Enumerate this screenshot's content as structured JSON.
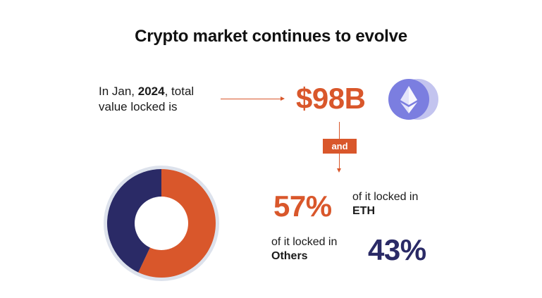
{
  "title": "Crypto market continues to evolve",
  "intro": {
    "prefix": "In Jan, ",
    "year": "2024",
    "suffix": ", total",
    "line2": "value locked is"
  },
  "total_value": "$98B",
  "connector_label": "and",
  "eth_share": {
    "percent_label": "57%",
    "desc_line1": "of it locked in",
    "desc_line2": "ETH"
  },
  "others_share": {
    "percent_label": "43%",
    "desc_line1": "of it locked in",
    "desc_line2": "Others"
  },
  "colors": {
    "accent_orange": "#d9572b",
    "navy": "#2a2a66",
    "eth_logo_bg": "#7b7ee0"
  },
  "icons": [
    "ethereum-logo-icon",
    "arrow-right-icon",
    "arrow-down-icon"
  ],
  "chart_data": {
    "type": "pie",
    "categories": [
      "ETH",
      "Others"
    ],
    "values": [
      57,
      43
    ],
    "colors": [
      "#d9572b",
      "#2a2a66"
    ],
    "donut": true
  }
}
